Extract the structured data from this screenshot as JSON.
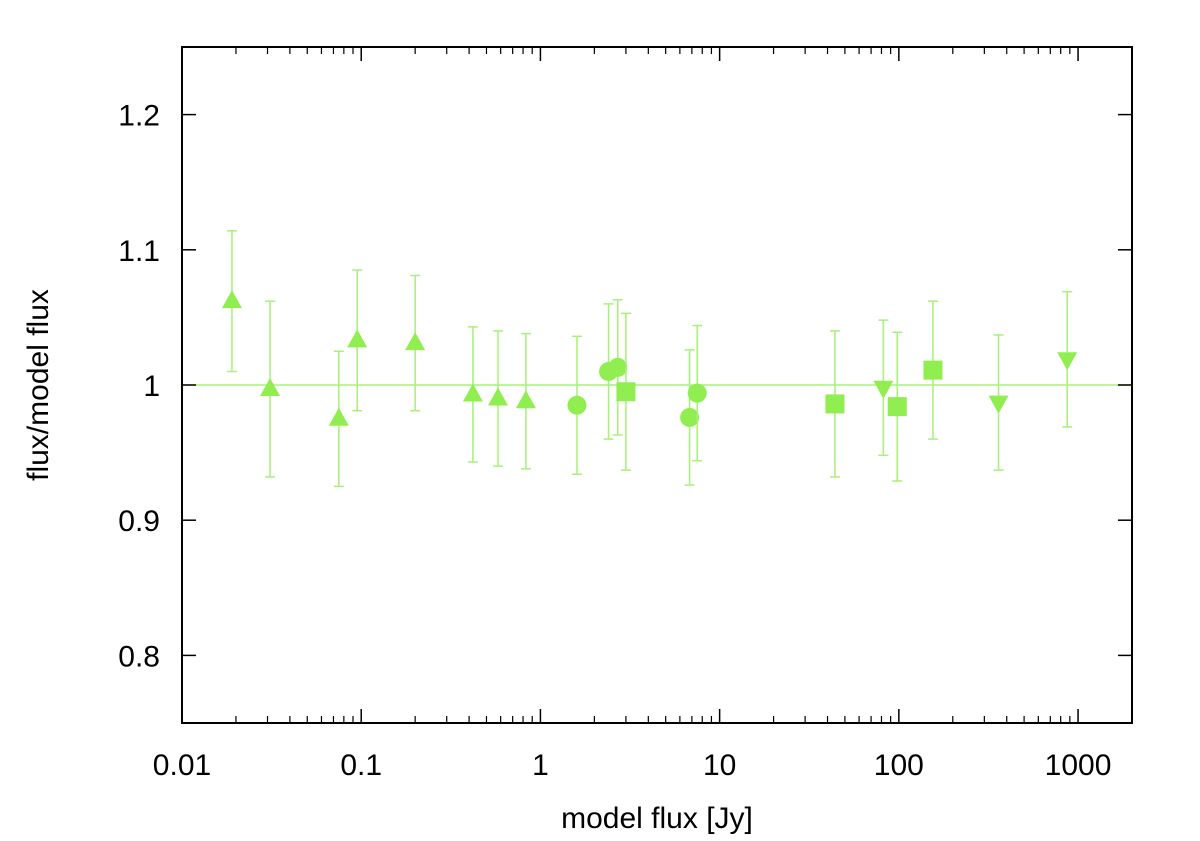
{
  "chart_data": {
    "type": "scatter",
    "xlabel": "model flux [Jy]",
    "ylabel": "flux/model flux",
    "x_scale": "log",
    "xlim": [
      0.01,
      2000
    ],
    "ylim": [
      0.75,
      1.25
    ],
    "x_ticks": [
      0.01,
      0.1,
      1,
      10,
      100,
      1000
    ],
    "x_tick_labels": [
      "0.01",
      "0.1",
      "1",
      "10",
      "100",
      "1000"
    ],
    "y_ticks": [
      0.8,
      0.9,
      1.0,
      1.1,
      1.2
    ],
    "y_tick_labels": [
      "0.8",
      "0.9",
      "1",
      "1.1",
      "1.2"
    ],
    "reference_line": {
      "y": 1.0
    },
    "grid": false,
    "colors": {
      "marker": "#90ee50",
      "errorbar": "#a8f07a",
      "line": "#a8f07a",
      "axis": "#000000"
    },
    "series": [
      {
        "marker": "triangle-up",
        "points": [
          {
            "x": 0.019,
            "y": 1.062,
            "err": 0.052
          },
          {
            "x": 0.031,
            "y": 0.997,
            "err": 0.065
          },
          {
            "x": 0.075,
            "y": 0.975,
            "err": 0.05
          },
          {
            "x": 0.095,
            "y": 1.033,
            "err": 0.052
          },
          {
            "x": 0.2,
            "y": 1.031,
            "err": 0.05
          },
          {
            "x": 0.42,
            "y": 0.993,
            "err": 0.05
          },
          {
            "x": 0.58,
            "y": 0.99,
            "err": 0.05
          },
          {
            "x": 0.83,
            "y": 0.988,
            "err": 0.05
          }
        ]
      },
      {
        "marker": "circle",
        "points": [
          {
            "x": 1.6,
            "y": 0.985,
            "err": 0.051
          },
          {
            "x": 2.4,
            "y": 1.01,
            "err": 0.05
          },
          {
            "x": 2.7,
            "y": 1.013,
            "err": 0.05
          },
          {
            "x": 6.8,
            "y": 0.976,
            "err": 0.05
          },
          {
            "x": 7.5,
            "y": 0.994,
            "err": 0.05
          }
        ]
      },
      {
        "marker": "square",
        "points": [
          {
            "x": 3.0,
            "y": 0.995,
            "err": 0.058
          },
          {
            "x": 44,
            "y": 0.986,
            "err": 0.054
          },
          {
            "x": 98,
            "y": 0.984,
            "err": 0.055
          },
          {
            "x": 155,
            "y": 1.011,
            "err": 0.051
          }
        ]
      },
      {
        "marker": "triangle-down",
        "points": [
          {
            "x": 82,
            "y": 0.998,
            "err": 0.05
          },
          {
            "x": 360,
            "y": 0.987,
            "err": 0.05
          },
          {
            "x": 870,
            "y": 1.019,
            "err": 0.05
          }
        ]
      }
    ]
  }
}
